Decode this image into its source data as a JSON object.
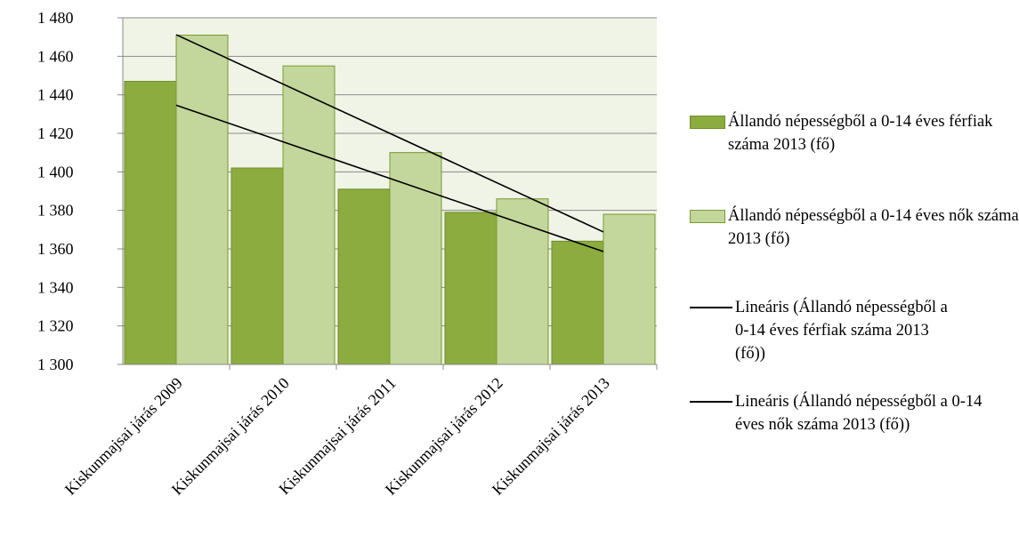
{
  "chart_data": {
    "type": "bar",
    "categories": [
      "Kiskunmajsai járás 2009",
      "Kiskunmajsai járás 2010",
      "Kiskunmajsai járás 2011",
      "Kiskunmajsai járás 2012",
      "Kiskunmajsai járás 2013"
    ],
    "series": [
      {
        "name": "Állandó népességből a 0-14 éves férfiak száma 2013 (fő)",
        "values": [
          1447,
          1402,
          1391,
          1379,
          1364
        ],
        "color": "#8cac3f",
        "stroke": "#6f8c2c"
      },
      {
        "name": "Állandó népességből a 0-14 éves nők száma 2013 (fő)",
        "values": [
          1471,
          1455,
          1410,
          1386,
          1378
        ],
        "color": "#c3d69b",
        "stroke": "#7a9a32"
      }
    ],
    "trendlines": [
      {
        "name": "Lineáris (Állandó népességből a 0-14 éves férfiak száma 2013 (fő))",
        "series": 0,
        "start": 1434.6,
        "end": 1358.6,
        "color": "#000000"
      },
      {
        "name": "Lineáris (Állandó népességből a 0-14 éves nők száma 2013 (fő))",
        "series": 1,
        "start": 1471.2,
        "end": 1368.8,
        "color": "#000000"
      }
    ],
    "yticks": [
      "1 300",
      "1 320",
      "1 340",
      "1 360",
      "1 380",
      "1 400",
      "1 420",
      "1 440",
      "1 460",
      "1 480"
    ],
    "ylim": [
      1300,
      1480
    ],
    "grid": true,
    "plot_background": "#f0f4e6",
    "legend_position": "right"
  }
}
